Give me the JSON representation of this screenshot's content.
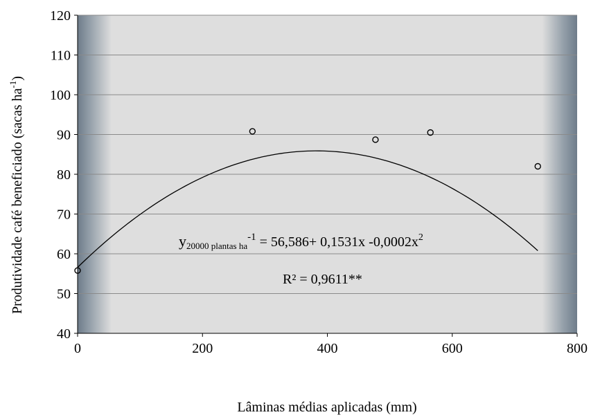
{
  "chart_data": {
    "type": "scatter",
    "x": [
      0,
      280,
      477,
      565,
      737
    ],
    "y": [
      55.8,
      90.8,
      88.7,
      90.5,
      82.0
    ],
    "fit_curve": {
      "type": "quadratic",
      "a": 56.586,
      "b": 0.1531,
      "c": -0.0002,
      "x_range": [
        0,
        737
      ]
    },
    "xlabel": "Lâminas médias aplicadas (mm)",
    "ylabel_main": "Produtividade café beneficiado (sacas ha",
    "ylabel_sup": "-1",
    "ylabel_end": ")",
    "xlim": [
      0,
      800
    ],
    "ylim": [
      40,
      120
    ],
    "xticks": [
      0,
      200,
      400,
      600,
      800
    ],
    "yticks": [
      40,
      50,
      60,
      70,
      80,
      90,
      100,
      110,
      120
    ],
    "grid": "horizontal",
    "background": "gray gradient with dark vertical bands at both edges",
    "colors": {
      "plot_bg": "#dedede",
      "edge_band": "#6e7c8a",
      "grid": "#8a8a8a",
      "line": "#000000"
    },
    "equation": {
      "y": "y",
      "subscript": "20000 plantas ha",
      "sup": "-1",
      "rhs_part1": " = 56,586+ 0,1531x -0,0002x",
      "sup2": "2"
    },
    "r2": "R² = 0,9611**"
  }
}
